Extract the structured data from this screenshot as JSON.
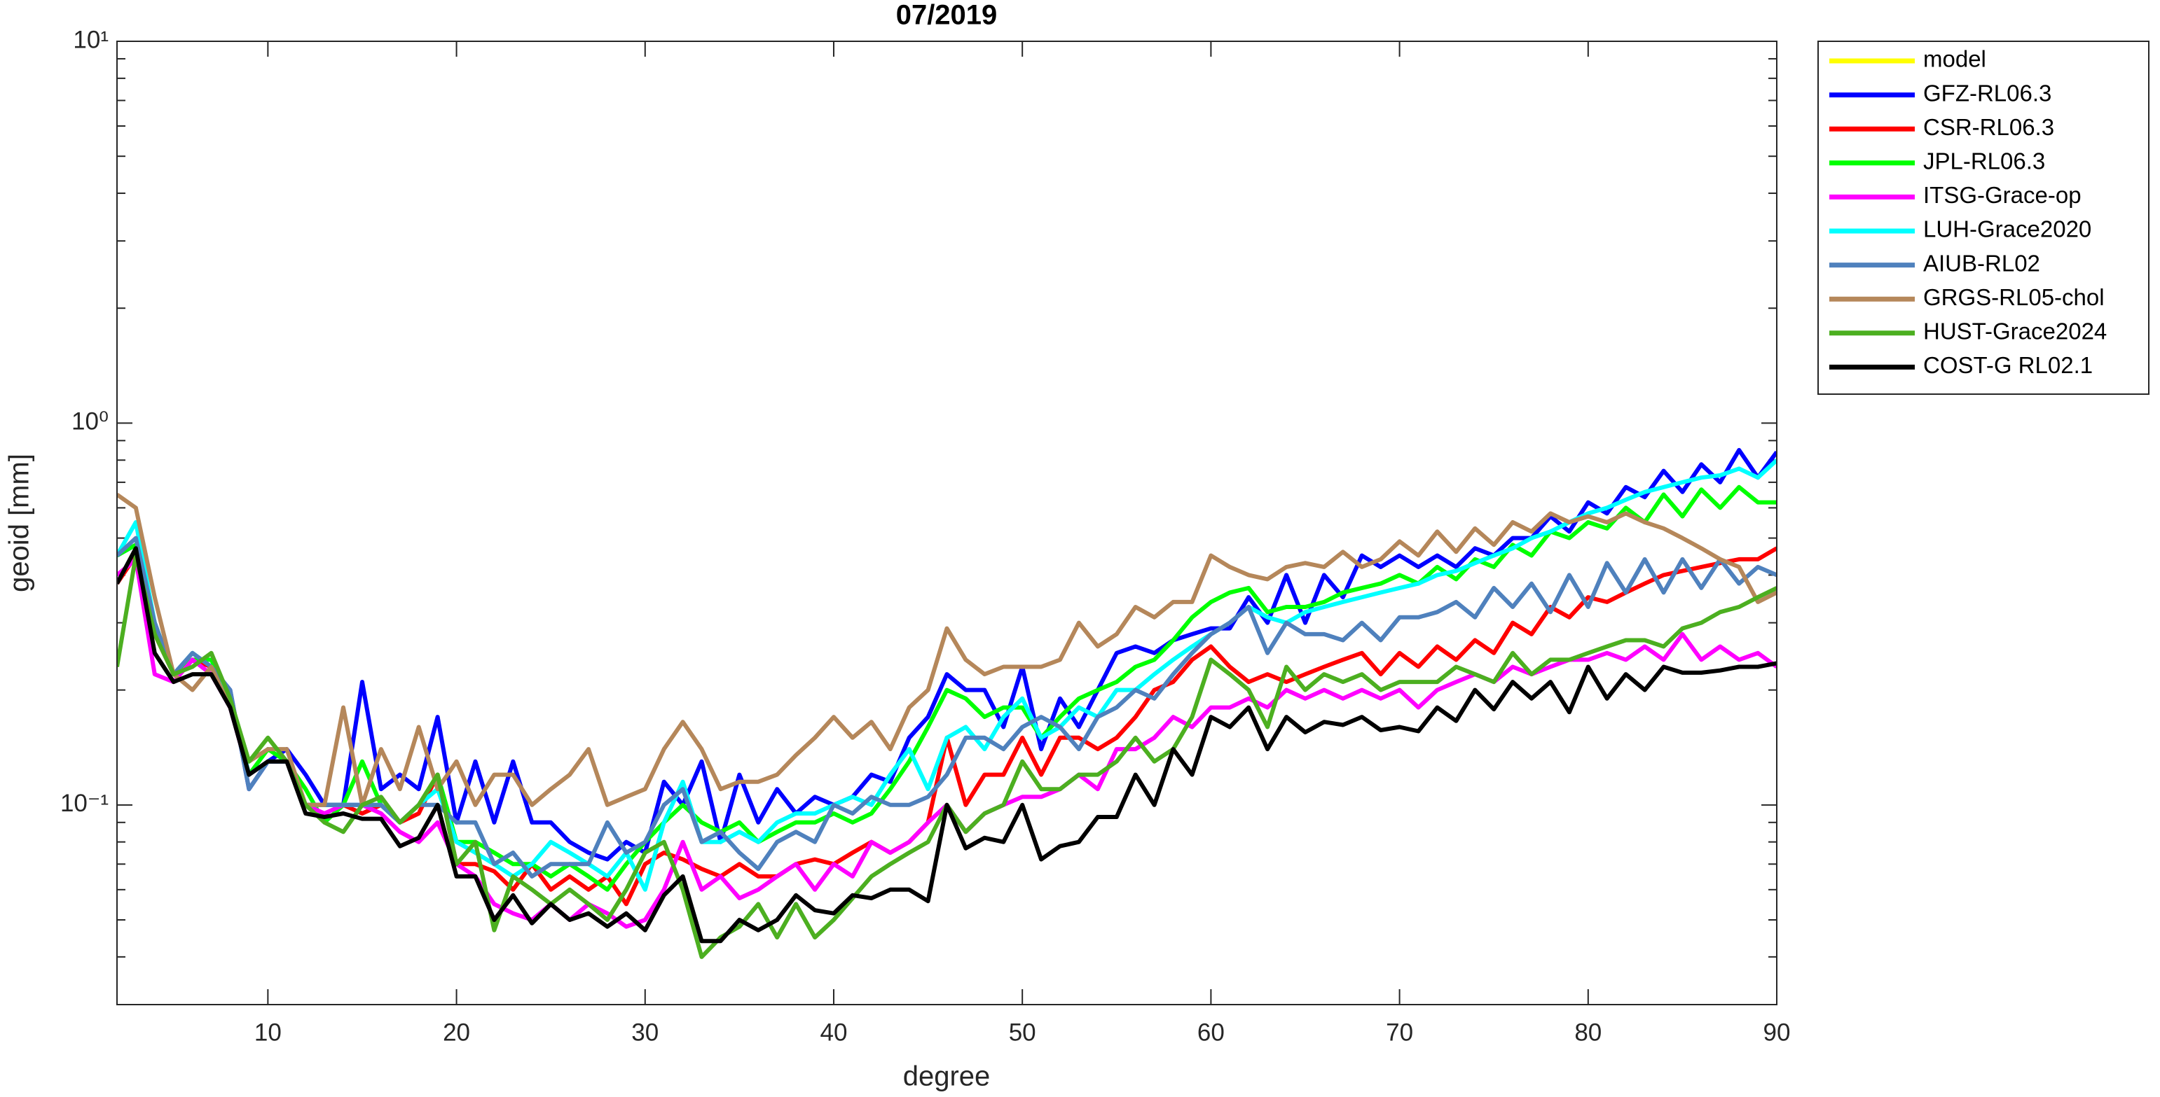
{
  "chart_data": {
    "type": "line",
    "title": "07/2019",
    "xlabel": "degree",
    "ylabel": "geoid [mm]",
    "yscale": "log",
    "legend": "outside-right-top",
    "xlim": [
      2,
      90
    ],
    "xticks": [
      10,
      20,
      30,
      40,
      50,
      60,
      70,
      80,
      90
    ],
    "ylim": [
      0.03,
      10
    ],
    "yticks": [
      {
        "value": 0.1,
        "label": "10⁻¹"
      },
      {
        "value": 1,
        "label": "10⁰"
      },
      {
        "value": 10,
        "label": "10¹"
      }
    ],
    "yminorticks": [
      0.04,
      0.05,
      0.06,
      0.07,
      0.08,
      0.09,
      0.2,
      0.3,
      0.4,
      0.5,
      0.6,
      0.7,
      0.8,
      0.9,
      2,
      3,
      4,
      5,
      6,
      7,
      8,
      9
    ],
    "x": [
      2,
      3,
      4,
      5,
      6,
      7,
      8,
      9,
      10,
      11,
      12,
      13,
      14,
      15,
      16,
      17,
      18,
      19,
      20,
      21,
      22,
      23,
      24,
      25,
      26,
      27,
      28,
      29,
      30,
      31,
      32,
      33,
      34,
      35,
      36,
      37,
      38,
      39,
      40,
      41,
      42,
      43,
      44,
      45,
      46,
      47,
      48,
      49,
      50,
      51,
      52,
      53,
      54,
      55,
      56,
      57,
      58,
      59,
      60,
      61,
      62,
      63,
      64,
      65,
      66,
      67,
      68,
      69,
      70,
      71,
      72,
      73,
      74,
      75,
      76,
      77,
      78,
      79,
      80,
      81,
      82,
      83,
      84,
      85,
      86,
      87,
      88,
      89,
      90
    ],
    "series": [
      {
        "name": "model",
        "color": "#ffff00",
        "values": [
          null,
          null,
          null,
          null,
          null,
          null,
          null,
          null,
          null,
          null,
          null,
          null,
          null,
          null,
          null,
          null,
          null,
          null,
          null,
          null,
          null,
          null,
          null,
          null,
          null,
          null,
          null,
          null,
          null,
          null,
          null,
          null,
          null,
          null,
          null,
          null,
          null,
          null,
          null,
          null,
          null,
          null,
          null,
          null,
          null,
          null,
          null,
          null,
          null,
          null,
          null,
          null,
          null,
          null,
          null,
          null,
          null,
          null,
          null,
          null,
          null,
          null,
          null,
          null,
          null,
          null,
          null,
          null,
          null,
          null,
          null,
          null,
          null,
          null,
          null,
          null,
          null,
          null,
          null,
          null,
          null,
          null,
          null,
          null,
          null,
          null,
          null,
          null,
          null
        ]
      },
      {
        "name": "GFZ-RL06.3",
        "color": "#0000ff",
        "values": [
          0.45,
          0.48,
          0.3,
          0.22,
          0.24,
          0.23,
          0.2,
          0.11,
          0.13,
          0.14,
          0.12,
          0.1,
          0.1,
          0.21,
          0.11,
          0.12,
          0.11,
          0.17,
          0.09,
          0.13,
          0.09,
          0.13,
          0.09,
          0.09,
          0.08,
          0.075,
          0.072,
          0.08,
          0.075,
          0.115,
          0.1,
          0.13,
          0.08,
          0.12,
          0.09,
          0.11,
          0.095,
          0.105,
          0.1,
          0.105,
          0.12,
          0.115,
          0.15,
          0.17,
          0.22,
          0.2,
          0.2,
          0.16,
          0.23,
          0.14,
          0.19,
          0.16,
          0.2,
          0.25,
          0.26,
          0.25,
          0.27,
          0.28,
          0.29,
          0.29,
          0.35,
          0.3,
          0.4,
          0.3,
          0.4,
          0.35,
          0.45,
          0.42,
          0.45,
          0.42,
          0.45,
          0.42,
          0.47,
          0.45,
          0.5,
          0.5,
          0.57,
          0.52,
          0.62,
          0.58,
          0.68,
          0.64,
          0.75,
          0.66,
          0.78,
          0.7,
          0.85,
          0.72,
          0.84
        ]
      },
      {
        "name": "CSR-RL06.3",
        "color": "#ff0000",
        "values": [
          0.38,
          0.45,
          0.28,
          0.22,
          0.24,
          0.23,
          0.19,
          0.12,
          0.13,
          0.13,
          0.1,
          0.1,
          0.1,
          0.095,
          0.1,
          0.09,
          0.095,
          0.12,
          0.07,
          0.07,
          0.067,
          0.06,
          0.07,
          0.06,
          0.065,
          0.06,
          0.065,
          0.055,
          0.07,
          0.075,
          0.072,
          0.068,
          0.065,
          0.07,
          0.065,
          0.065,
          0.07,
          0.072,
          0.07,
          0.075,
          0.08,
          0.075,
          0.08,
          0.09,
          0.15,
          0.1,
          0.12,
          0.12,
          0.15,
          0.12,
          0.15,
          0.15,
          0.14,
          0.15,
          0.17,
          0.2,
          0.21,
          0.24,
          0.26,
          0.23,
          0.21,
          0.22,
          0.21,
          0.22,
          0.23,
          0.24,
          0.25,
          0.22,
          0.25,
          0.23,
          0.26,
          0.24,
          0.27,
          0.25,
          0.3,
          0.28,
          0.33,
          0.31,
          0.35,
          0.34,
          0.36,
          0.38,
          0.4,
          0.41,
          0.42,
          0.43,
          0.44,
          0.44,
          0.47
        ]
      },
      {
        "name": "JPL-RL06.3",
        "color": "#00ff00",
        "values": [
          0.45,
          0.48,
          0.3,
          0.22,
          0.24,
          0.24,
          0.19,
          0.12,
          0.14,
          0.13,
          0.11,
          0.09,
          0.1,
          0.13,
          0.1,
          0.09,
          0.1,
          0.12,
          0.08,
          0.08,
          0.075,
          0.07,
          0.07,
          0.065,
          0.07,
          0.065,
          0.06,
          0.07,
          0.08,
          0.09,
          0.1,
          0.09,
          0.085,
          0.09,
          0.08,
          0.085,
          0.09,
          0.09,
          0.095,
          0.09,
          0.095,
          0.11,
          0.13,
          0.16,
          0.2,
          0.19,
          0.17,
          0.18,
          0.18,
          0.15,
          0.17,
          0.19,
          0.2,
          0.21,
          0.23,
          0.24,
          0.27,
          0.31,
          0.34,
          0.36,
          0.37,
          0.32,
          0.33,
          0.33,
          0.34,
          0.36,
          0.37,
          0.38,
          0.4,
          0.38,
          0.42,
          0.39,
          0.44,
          0.42,
          0.48,
          0.45,
          0.52,
          0.5,
          0.55,
          0.53,
          0.6,
          0.55,
          0.65,
          0.57,
          0.67,
          0.6,
          0.68,
          0.62,
          0.62
        ]
      },
      {
        "name": "ITSG-Grace-op",
        "color": "#ff00ff",
        "values": [
          0.4,
          0.44,
          0.22,
          0.21,
          0.24,
          0.22,
          0.18,
          0.12,
          0.13,
          0.13,
          0.1,
          0.095,
          0.1,
          0.1,
          0.095,
          0.085,
          0.08,
          0.09,
          0.07,
          0.065,
          0.055,
          0.052,
          0.05,
          0.055,
          0.05,
          0.055,
          0.052,
          0.048,
          0.05,
          0.06,
          0.08,
          0.06,
          0.065,
          0.057,
          0.06,
          0.065,
          0.07,
          0.06,
          0.07,
          0.065,
          0.08,
          0.075,
          0.08,
          0.09,
          0.1,
          0.085,
          0.095,
          0.1,
          0.105,
          0.105,
          0.11,
          0.12,
          0.11,
          0.14,
          0.14,
          0.15,
          0.17,
          0.16,
          0.18,
          0.18,
          0.19,
          0.18,
          0.2,
          0.19,
          0.2,
          0.19,
          0.2,
          0.19,
          0.2,
          0.18,
          0.2,
          0.21,
          0.22,
          0.21,
          0.23,
          0.22,
          0.23,
          0.24,
          0.24,
          0.25,
          0.24,
          0.26,
          0.24,
          0.28,
          0.24,
          0.26,
          0.24,
          0.25,
          0.23
        ]
      },
      {
        "name": "LUH-Grace2020",
        "color": "#00ffff",
        "values": [
          0.45,
          0.55,
          0.3,
          0.22,
          0.25,
          0.23,
          0.19,
          0.12,
          0.13,
          0.13,
          0.1,
          0.1,
          0.1,
          0.1,
          0.1,
          0.09,
          0.1,
          0.11,
          0.08,
          0.075,
          0.07,
          0.065,
          0.07,
          0.08,
          0.075,
          0.07,
          0.065,
          0.075,
          0.06,
          0.09,
          0.115,
          0.08,
          0.08,
          0.085,
          0.08,
          0.09,
          0.095,
          0.095,
          0.1,
          0.105,
          0.1,
          0.12,
          0.14,
          0.11,
          0.15,
          0.16,
          0.14,
          0.17,
          0.19,
          0.15,
          0.16,
          0.18,
          0.17,
          0.2,
          0.2,
          0.22,
          0.24,
          0.26,
          0.28,
          0.3,
          0.33,
          0.31,
          0.3,
          0.32,
          0.33,
          0.34,
          0.35,
          0.36,
          0.37,
          0.38,
          0.4,
          0.41,
          0.43,
          0.45,
          0.47,
          0.5,
          0.52,
          0.55,
          0.58,
          0.6,
          0.63,
          0.66,
          0.68,
          0.7,
          0.72,
          0.73,
          0.76,
          0.72,
          0.8
        ]
      },
      {
        "name": "AIUB-RL02",
        "color": "#4f81bd",
        "values": [
          0.45,
          0.5,
          0.3,
          0.22,
          0.25,
          0.23,
          0.2,
          0.11,
          0.13,
          0.13,
          0.1,
          0.1,
          0.1,
          0.1,
          0.1,
          0.09,
          0.1,
          0.1,
          0.09,
          0.09,
          0.07,
          0.075,
          0.065,
          0.07,
          0.07,
          0.07,
          0.09,
          0.075,
          0.08,
          0.1,
          0.11,
          0.08,
          0.085,
          0.075,
          0.068,
          0.08,
          0.085,
          0.08,
          0.1,
          0.095,
          0.105,
          0.1,
          0.1,
          0.105,
          0.12,
          0.15,
          0.15,
          0.14,
          0.16,
          0.17,
          0.16,
          0.14,
          0.17,
          0.18,
          0.2,
          0.19,
          0.22,
          0.25,
          0.28,
          0.3,
          0.33,
          0.25,
          0.3,
          0.28,
          0.28,
          0.27,
          0.3,
          0.27,
          0.31,
          0.31,
          0.32,
          0.34,
          0.31,
          0.37,
          0.33,
          0.38,
          0.32,
          0.4,
          0.33,
          0.43,
          0.36,
          0.44,
          0.36,
          0.44,
          0.37,
          0.44,
          0.38,
          0.42,
          0.4
        ]
      },
      {
        "name": "GRGS-RL05-chol",
        "color": "#b5875a",
        "values": [
          0.65,
          0.6,
          0.35,
          0.22,
          0.2,
          0.23,
          0.18,
          0.13,
          0.14,
          0.14,
          0.1,
          0.1,
          0.18,
          0.1,
          0.14,
          0.11,
          0.16,
          0.11,
          0.13,
          0.1,
          0.12,
          0.12,
          0.1,
          0.11,
          0.12,
          0.14,
          0.1,
          0.105,
          0.11,
          0.14,
          0.165,
          0.14,
          0.11,
          0.115,
          0.115,
          0.12,
          0.135,
          0.15,
          0.17,
          0.15,
          0.165,
          0.14,
          0.18,
          0.2,
          0.29,
          0.24,
          0.22,
          0.23,
          0.23,
          0.23,
          0.24,
          0.3,
          0.26,
          0.28,
          0.33,
          0.31,
          0.34,
          0.34,
          0.45,
          0.42,
          0.4,
          0.39,
          0.42,
          0.43,
          0.42,
          0.46,
          0.42,
          0.44,
          0.49,
          0.45,
          0.52,
          0.46,
          0.53,
          0.48,
          0.55,
          0.52,
          0.58,
          0.55,
          0.57,
          0.55,
          0.58,
          0.55,
          0.53,
          0.5,
          0.47,
          0.44,
          0.42,
          0.34,
          0.36
        ]
      },
      {
        "name": "HUST-Grace2024",
        "color": "#4caf20",
        "values": [
          0.23,
          0.45,
          0.28,
          0.22,
          0.23,
          0.25,
          0.19,
          0.13,
          0.15,
          0.13,
          0.1,
          0.09,
          0.085,
          0.1,
          0.105,
          0.09,
          0.1,
          0.12,
          0.07,
          0.08,
          0.047,
          0.065,
          0.06,
          0.055,
          0.06,
          0.055,
          0.05,
          0.06,
          0.075,
          0.08,
          0.06,
          0.04,
          0.045,
          0.048,
          0.055,
          0.045,
          0.055,
          0.045,
          0.05,
          0.057,
          0.065,
          0.07,
          0.075,
          0.08,
          0.1,
          0.085,
          0.095,
          0.1,
          0.13,
          0.11,
          0.11,
          0.12,
          0.12,
          0.13,
          0.15,
          0.13,
          0.14,
          0.17,
          0.24,
          0.22,
          0.2,
          0.16,
          0.23,
          0.2,
          0.22,
          0.21,
          0.22,
          0.2,
          0.21,
          0.21,
          0.21,
          0.23,
          0.22,
          0.21,
          0.25,
          0.22,
          0.24,
          0.24,
          0.25,
          0.26,
          0.27,
          0.27,
          0.26,
          0.29,
          0.3,
          0.32,
          0.33,
          0.35,
          0.37
        ]
      },
      {
        "name": "COST-G RL02.1",
        "color": "#000000",
        "values": [
          0.38,
          0.47,
          0.25,
          0.21,
          0.22,
          0.22,
          0.18,
          0.12,
          0.13,
          0.13,
          0.095,
          0.093,
          0.095,
          0.092,
          0.092,
          0.078,
          0.082,
          0.1,
          0.065,
          0.065,
          0.05,
          0.058,
          0.049,
          0.055,
          0.05,
          0.052,
          0.048,
          0.052,
          0.047,
          0.058,
          0.065,
          0.044,
          0.044,
          0.05,
          0.047,
          0.05,
          0.058,
          0.053,
          0.052,
          0.058,
          0.057,
          0.06,
          0.06,
          0.056,
          0.1,
          0.077,
          0.082,
          0.08,
          0.1,
          0.072,
          0.078,
          0.08,
          0.093,
          0.093,
          0.12,
          0.1,
          0.14,
          0.12,
          0.17,
          0.16,
          0.18,
          0.14,
          0.17,
          0.155,
          0.165,
          0.162,
          0.17,
          0.157,
          0.16,
          0.156,
          0.18,
          0.166,
          0.2,
          0.178,
          0.21,
          0.19,
          0.21,
          0.175,
          0.23,
          0.19,
          0.22,
          0.2,
          0.23,
          0.222,
          0.222,
          0.225,
          0.23,
          0.23,
          0.235
        ]
      }
    ]
  }
}
